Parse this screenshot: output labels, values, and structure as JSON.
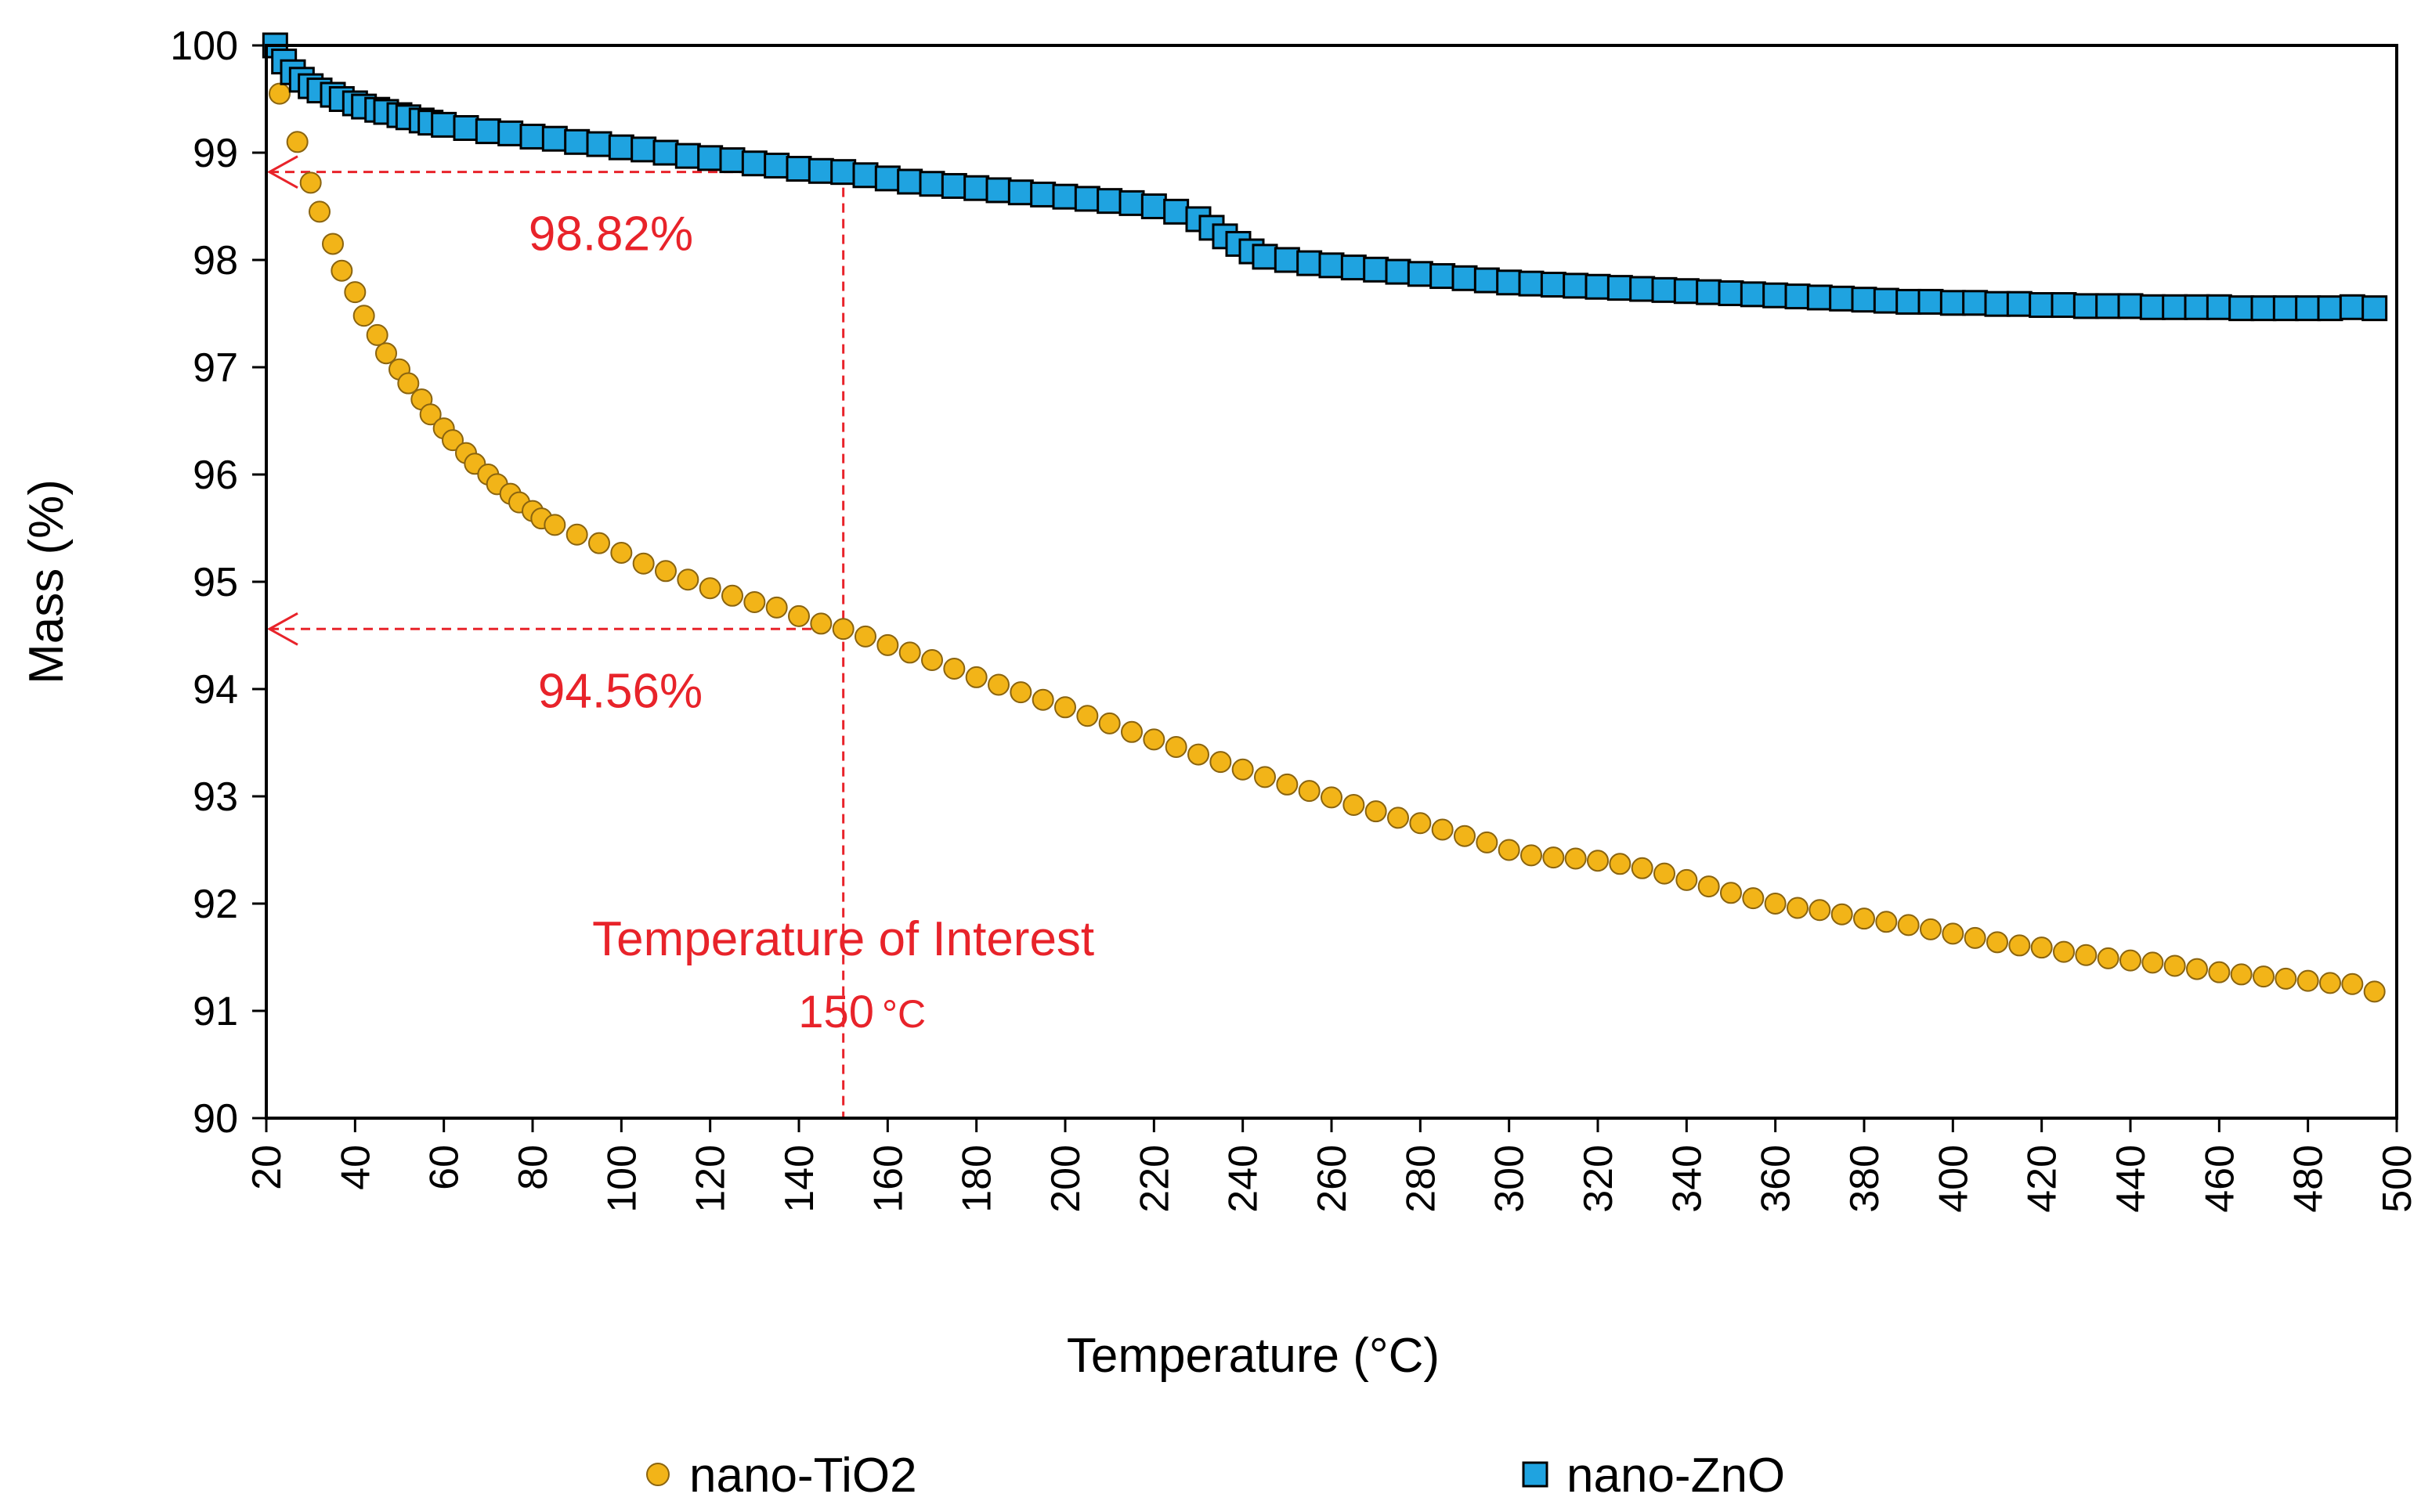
{
  "chart_data": {
    "type": "scatter",
    "title": "",
    "xlabel": "Temperature (°C)",
    "ylabel": "Mass (%)",
    "xlim": [
      20,
      500
    ],
    "ylim": [
      90,
      100
    ],
    "x_ticks": [
      "20",
      "40",
      "60",
      "80",
      "100",
      "120",
      "140",
      "160",
      "180",
      "200",
      "220",
      "240",
      "260",
      "280",
      "300",
      "320",
      "340",
      "360",
      "380",
      "400",
      "420",
      "440",
      "460",
      "480",
      "500"
    ],
    "y_ticks": [
      "90",
      "91",
      "92",
      "93",
      "94",
      "95",
      "96",
      "97",
      "98",
      "99",
      "100"
    ],
    "legend_position": "bottom",
    "series": [
      {
        "name": "nano-TiO2",
        "marker": "circle",
        "color": "#F2B418",
        "points": [
          [
            23,
            99.55
          ],
          [
            27,
            99.1
          ],
          [
            30,
            98.72
          ],
          [
            32,
            98.45
          ],
          [
            35,
            98.15
          ],
          [
            37,
            97.9
          ],
          [
            40,
            97.7
          ],
          [
            42,
            97.48
          ],
          [
            45,
            97.3
          ],
          [
            47,
            97.13
          ],
          [
            50,
            96.98
          ],
          [
            52,
            96.85
          ],
          [
            55,
            96.7
          ],
          [
            57,
            96.56
          ],
          [
            60,
            96.43
          ],
          [
            62,
            96.32
          ],
          [
            65,
            96.2
          ],
          [
            67,
            96.1
          ],
          [
            70,
            96.0
          ],
          [
            72,
            95.91
          ],
          [
            75,
            95.82
          ],
          [
            77,
            95.74
          ],
          [
            80,
            95.66
          ],
          [
            82,
            95.59
          ],
          [
            85,
            95.53
          ],
          [
            90,
            95.44
          ],
          [
            95,
            95.36
          ],
          [
            100,
            95.27
          ],
          [
            105,
            95.17
          ],
          [
            110,
            95.1
          ],
          [
            115,
            95.02
          ],
          [
            120,
            94.94
          ],
          [
            125,
            94.87
          ],
          [
            130,
            94.81
          ],
          [
            135,
            94.76
          ],
          [
            140,
            94.68
          ],
          [
            145,
            94.61
          ],
          [
            150,
            94.56
          ],
          [
            155,
            94.49
          ],
          [
            160,
            94.41
          ],
          [
            165,
            94.34
          ],
          [
            170,
            94.27
          ],
          [
            175,
            94.19
          ],
          [
            180,
            94.11
          ],
          [
            185,
            94.04
          ],
          [
            190,
            93.97
          ],
          [
            195,
            93.9
          ],
          [
            200,
            93.83
          ],
          [
            205,
            93.75
          ],
          [
            210,
            93.68
          ],
          [
            215,
            93.6
          ],
          [
            220,
            93.53
          ],
          [
            225,
            93.46
          ],
          [
            230,
            93.39
          ],
          [
            235,
            93.32
          ],
          [
            240,
            93.25
          ],
          [
            245,
            93.18
          ],
          [
            250,
            93.11
          ],
          [
            255,
            93.05
          ],
          [
            260,
            92.99
          ],
          [
            265,
            92.92
          ],
          [
            270,
            92.86
          ],
          [
            275,
            92.8
          ],
          [
            280,
            92.75
          ],
          [
            285,
            92.69
          ],
          [
            290,
            92.63
          ],
          [
            295,
            92.57
          ],
          [
            300,
            92.5
          ],
          [
            305,
            92.45
          ],
          [
            310,
            92.43
          ],
          [
            315,
            92.42
          ],
          [
            320,
            92.4
          ],
          [
            325,
            92.37
          ],
          [
            330,
            92.33
          ],
          [
            335,
            92.28
          ],
          [
            340,
            92.22
          ],
          [
            345,
            92.16
          ],
          [
            350,
            92.1
          ],
          [
            355,
            92.05
          ],
          [
            360,
            92.0
          ],
          [
            365,
            91.96
          ],
          [
            370,
            91.94
          ],
          [
            375,
            91.9
          ],
          [
            380,
            91.86
          ],
          [
            385,
            91.83
          ],
          [
            390,
            91.8
          ],
          [
            395,
            91.76
          ],
          [
            400,
            91.72
          ],
          [
            405,
            91.68
          ],
          [
            410,
            91.64
          ],
          [
            415,
            91.61
          ],
          [
            420,
            91.59
          ],
          [
            425,
            91.55
          ],
          [
            430,
            91.52
          ],
          [
            435,
            91.49
          ],
          [
            440,
            91.47
          ],
          [
            445,
            91.45
          ],
          [
            450,
            91.42
          ],
          [
            455,
            91.39
          ],
          [
            460,
            91.36
          ],
          [
            465,
            91.34
          ],
          [
            470,
            91.32
          ],
          [
            475,
            91.3
          ],
          [
            480,
            91.28
          ],
          [
            485,
            91.26
          ],
          [
            490,
            91.25
          ],
          [
            495,
            91.18
          ]
        ]
      },
      {
        "name": "nano-ZnO",
        "marker": "square",
        "color": "#1FA3E0",
        "points": [
          [
            22,
            100.0
          ],
          [
            24,
            99.85
          ],
          [
            26,
            99.75
          ],
          [
            28,
            99.68
          ],
          [
            30,
            99.62
          ],
          [
            32,
            99.58
          ],
          [
            35,
            99.54
          ],
          [
            37,
            99.5
          ],
          [
            40,
            99.46
          ],
          [
            42,
            99.43
          ],
          [
            45,
            99.4
          ],
          [
            47,
            99.38
          ],
          [
            50,
            99.35
          ],
          [
            52,
            99.33
          ],
          [
            55,
            99.3
          ],
          [
            57,
            99.28
          ],
          [
            60,
            99.26
          ],
          [
            65,
            99.23
          ],
          [
            70,
            99.2
          ],
          [
            75,
            99.18
          ],
          [
            80,
            99.15
          ],
          [
            85,
            99.13
          ],
          [
            90,
            99.1
          ],
          [
            95,
            99.08
          ],
          [
            100,
            99.05
          ],
          [
            105,
            99.03
          ],
          [
            110,
            99.0
          ],
          [
            115,
            98.97
          ],
          [
            120,
            98.95
          ],
          [
            125,
            98.93
          ],
          [
            130,
            98.9
          ],
          [
            135,
            98.88
          ],
          [
            140,
            98.85
          ],
          [
            145,
            98.83
          ],
          [
            150,
            98.82
          ],
          [
            155,
            98.79
          ],
          [
            160,
            98.76
          ],
          [
            165,
            98.73
          ],
          [
            170,
            98.71
          ],
          [
            175,
            98.69
          ],
          [
            180,
            98.67
          ],
          [
            185,
            98.65
          ],
          [
            190,
            98.63
          ],
          [
            195,
            98.61
          ],
          [
            200,
            98.59
          ],
          [
            205,
            98.57
          ],
          [
            210,
            98.55
          ],
          [
            215,
            98.53
          ],
          [
            220,
            98.5
          ],
          [
            225,
            98.45
          ],
          [
            230,
            98.38
          ],
          [
            233,
            98.3
          ],
          [
            236,
            98.22
          ],
          [
            239,
            98.15
          ],
          [
            242,
            98.08
          ],
          [
            245,
            98.03
          ],
          [
            250,
            98.0
          ],
          [
            255,
            97.97
          ],
          [
            260,
            97.95
          ],
          [
            265,
            97.93
          ],
          [
            270,
            97.91
          ],
          [
            275,
            97.89
          ],
          [
            280,
            97.87
          ],
          [
            285,
            97.85
          ],
          [
            290,
            97.83
          ],
          [
            295,
            97.81
          ],
          [
            300,
            97.79
          ],
          [
            305,
            97.78
          ],
          [
            310,
            97.77
          ],
          [
            315,
            97.76
          ],
          [
            320,
            97.75
          ],
          [
            325,
            97.74
          ],
          [
            330,
            97.73
          ],
          [
            335,
            97.72
          ],
          [
            340,
            97.71
          ],
          [
            345,
            97.7
          ],
          [
            350,
            97.69
          ],
          [
            355,
            97.68
          ],
          [
            360,
            97.67
          ],
          [
            365,
            97.66
          ],
          [
            370,
            97.65
          ],
          [
            375,
            97.64
          ],
          [
            380,
            97.63
          ],
          [
            385,
            97.62
          ],
          [
            390,
            97.61
          ],
          [
            395,
            97.61
          ],
          [
            400,
            97.6
          ],
          [
            405,
            97.6
          ],
          [
            410,
            97.59
          ],
          [
            415,
            97.59
          ],
          [
            420,
            97.58
          ],
          [
            425,
            97.58
          ],
          [
            430,
            97.57
          ],
          [
            435,
            97.57
          ],
          [
            440,
            97.57
          ],
          [
            445,
            97.56
          ],
          [
            450,
            97.56
          ],
          [
            455,
            97.56
          ],
          [
            460,
            97.56
          ],
          [
            465,
            97.55
          ],
          [
            470,
            97.55
          ],
          [
            475,
            97.55
          ],
          [
            480,
            97.55
          ],
          [
            485,
            97.55
          ],
          [
            490,
            97.56
          ],
          [
            495,
            97.55
          ]
        ]
      }
    ],
    "annotations": {
      "zno_label": "98.82%",
      "zno_value": 98.82,
      "tio2_label": "94.56%",
      "tio2_value": 94.56,
      "interest_title": "Temperature of Interest",
      "interest_value_text": "150",
      "interest_unit": "°C",
      "interest_x": 150,
      "color": "#E8232A"
    }
  }
}
